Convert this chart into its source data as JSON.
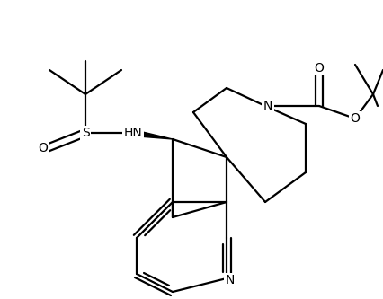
{
  "background_color": "#ffffff",
  "line_color": "#000000",
  "line_width": 1.6,
  "font_size": 10,
  "figsize": [
    4.26,
    3.33
  ],
  "dpi": 100,
  "xlim": [
    0,
    426
  ],
  "ylim": [
    0,
    333
  ]
}
